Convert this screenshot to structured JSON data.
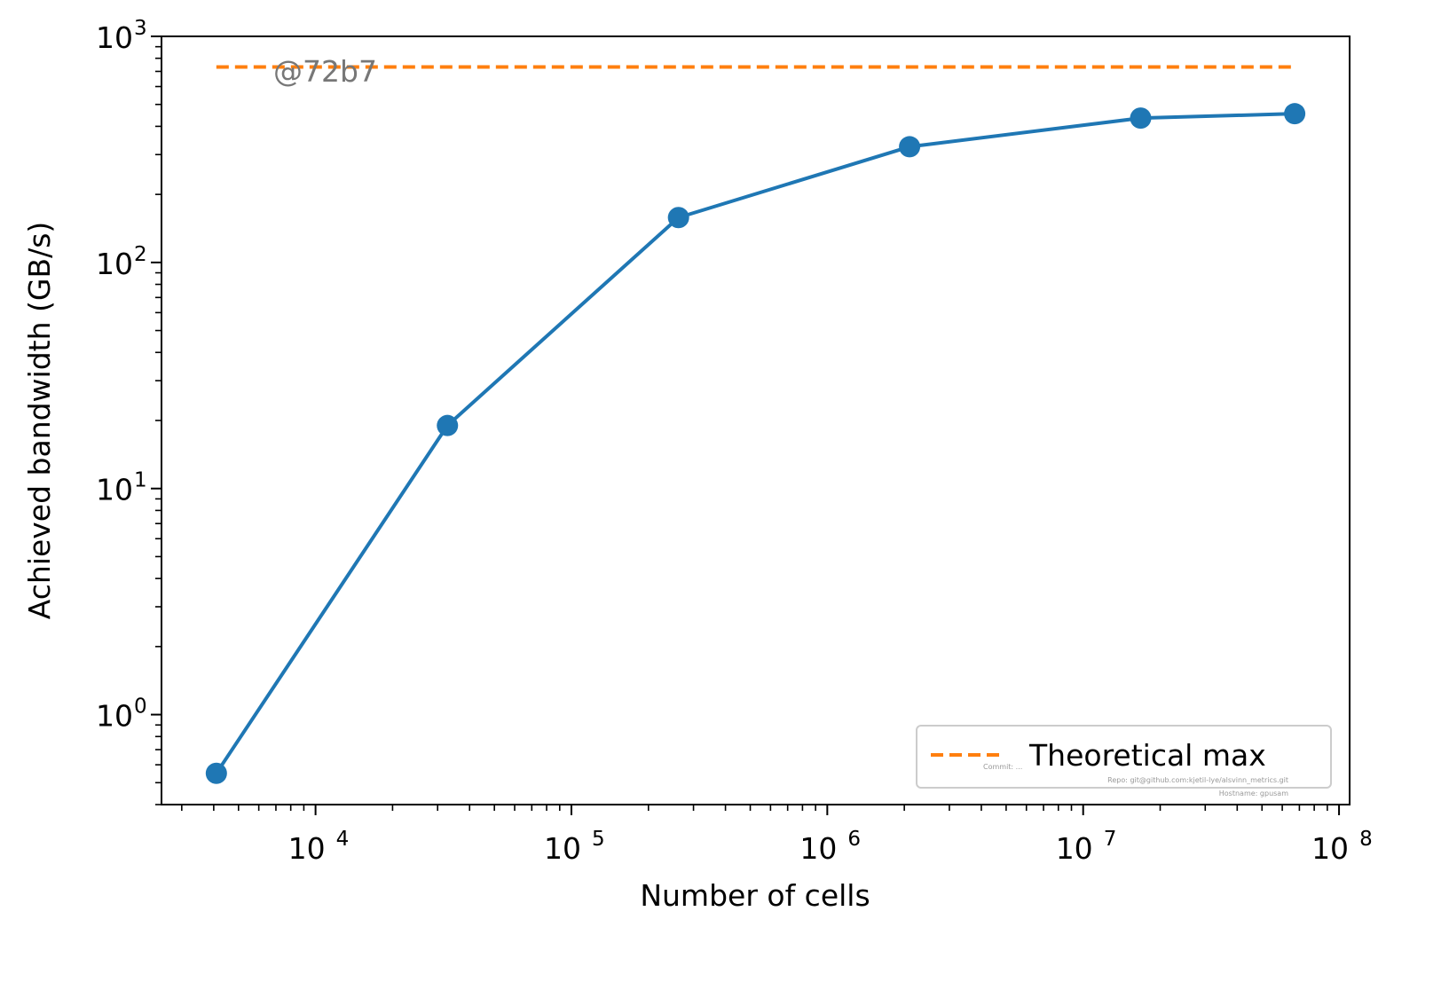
{
  "chart_data": {
    "type": "line",
    "xlabel": "Number of cells",
    "ylabel": "Achieved bandwidth (GB/s)",
    "xscale": "log",
    "yscale": "log",
    "xlim": [
      2500,
      110000000
    ],
    "ylim": [
      0.4,
      1000
    ],
    "x_ticks": [
      {
        "base": "10",
        "exp": "4",
        "value": 10000
      },
      {
        "base": "10",
        "exp": "5",
        "value": 100000
      },
      {
        "base": "10",
        "exp": "6",
        "value": 1000000
      },
      {
        "base": "10",
        "exp": "7",
        "value": 10000000
      },
      {
        "base": "10",
        "exp": "8",
        "value": 100000000
      }
    ],
    "y_ticks": [
      {
        "base": "10",
        "exp": "0",
        "value": 1
      },
      {
        "base": "10",
        "exp": "1",
        "value": 10
      },
      {
        "base": "10",
        "exp": "2",
        "value": 100
      },
      {
        "base": "10",
        "exp": "3",
        "value": 1000
      }
    ],
    "series": [
      {
        "color": "#1f77b4",
        "style": "solid",
        "marker": "circle",
        "points": [
          {
            "x": 4096,
            "y": 0.55
          },
          {
            "x": 32768,
            "y": 19
          },
          {
            "x": 262144,
            "y": 158
          },
          {
            "x": 2097152,
            "y": 325
          },
          {
            "x": 16777216,
            "y": 435
          },
          {
            "x": 67108864,
            "y": 455
          }
        ]
      },
      {
        "name": "Theoretical max",
        "color": "#ff7f0e",
        "style": "dashed",
        "points": [
          {
            "x": 4096,
            "y": 732
          },
          {
            "x": 67108864,
            "y": 732
          }
        ]
      }
    ],
    "legend": {
      "placement": "lower-right",
      "entries": [
        "Theoretical max"
      ]
    },
    "annotations": {
      "watermark": "@72b7",
      "meta_lines": [
        "Commit: ...",
        "Repo: git@github.com:kjetil-lye/alsvinn_metrics.git",
        "Hostname: gpusam"
      ]
    },
    "grid": false
  }
}
